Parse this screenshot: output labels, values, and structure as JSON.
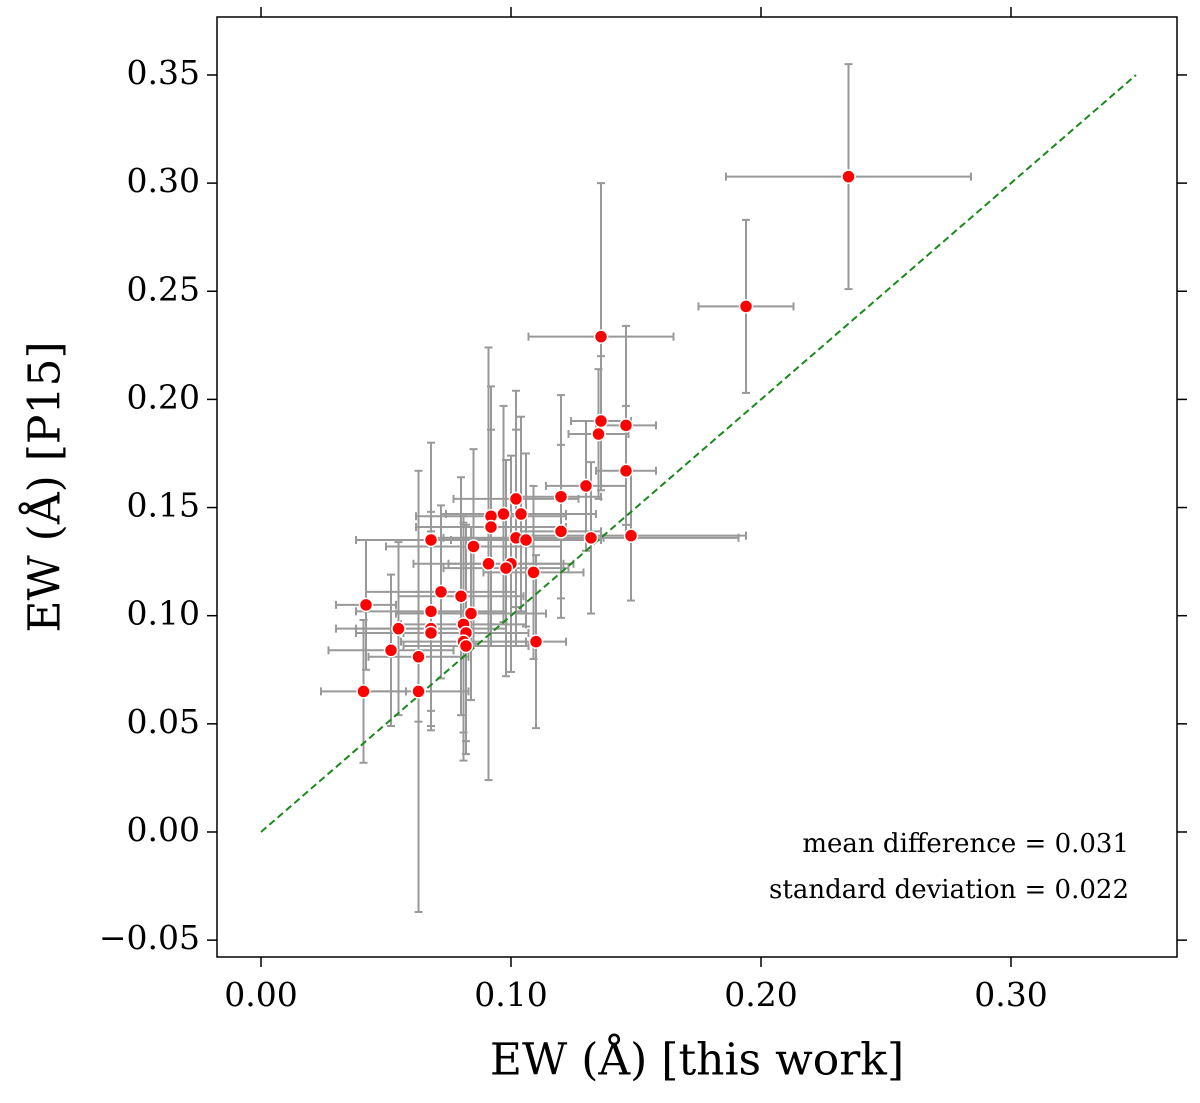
{
  "chart_data": {
    "type": "scatter",
    "xlabel": "EW (Å) [this work]",
    "ylabel": "EW (Å) [P15]",
    "xlim": [
      -0.0176,
      0.3664
    ],
    "ylim": [
      -0.0578,
      0.3768
    ],
    "xticks": [
      {
        "value": 0,
        "label": "0.00"
      },
      {
        "value": 0.1,
        "label": "0.10"
      },
      {
        "value": 0.2,
        "label": "0.20"
      },
      {
        "value": 0.3,
        "label": "0.30"
      }
    ],
    "yticks": [
      {
        "value": -0.05,
        "label": "−0.05"
      },
      {
        "value": 0,
        "label": "0.00"
      },
      {
        "value": 0.05,
        "label": "0.05"
      },
      {
        "value": 0.1,
        "label": "0.10"
      },
      {
        "value": 0.15,
        "label": "0.15"
      },
      {
        "value": 0.2,
        "label": "0.20"
      },
      {
        "value": 0.25,
        "label": "0.25"
      },
      {
        "value": 0.3,
        "label": "0.30"
      },
      {
        "value": 0.35,
        "label": "0.35"
      }
    ],
    "reference_line": {
      "x": [
        0,
        0.35
      ],
      "y": [
        0,
        0.35
      ],
      "color": "#1a8a1a"
    },
    "annotations": [
      "mean difference = 0.031",
      "standard deviation = 0.022"
    ],
    "series": [
      {
        "color": "#ff0000",
        "error_color": "#999999",
        "x": [
          0.235,
          0.194,
          0.136,
          0.136,
          0.135,
          0.146,
          0.146,
          0.148,
          0.13,
          0.12,
          0.12,
          0.132,
          0.102,
          0.104,
          0.097,
          0.092,
          0.092,
          0.102,
          0.106,
          0.085,
          0.068,
          0.091,
          0.1,
          0.098,
          0.109,
          0.072,
          0.08,
          0.042,
          0.068,
          0.084,
          0.055,
          0.068,
          0.068,
          0.081,
          0.082,
          0.081,
          0.082,
          0.11,
          0.052,
          0.063,
          0.041,
          0.063
        ],
        "values": [
          0.303,
          0.243,
          0.229,
          0.19,
          0.184,
          0.188,
          0.167,
          0.137,
          0.16,
          0.155,
          0.139,
          0.136,
          0.154,
          0.147,
          0.147,
          0.146,
          0.141,
          0.136,
          0.135,
          0.132,
          0.135,
          0.124,
          0.124,
          0.122,
          0.12,
          0.111,
          0.109,
          0.105,
          0.102,
          0.101,
          0.094,
          0.094,
          0.092,
          0.096,
          0.092,
          0.088,
          0.086,
          0.088,
          0.084,
          0.081,
          0.065,
          0.065
        ],
        "xerr": [
          0.049,
          0.019,
          0.029,
          0.012,
          0.012,
          0.012,
          0.012,
          0.046,
          0.016,
          0.016,
          0.016,
          0.059,
          0.025,
          0.03,
          0.025,
          0.03,
          0.03,
          0.035,
          0.03,
          0.035,
          0.03,
          0.03,
          0.025,
          0.025,
          0.02,
          0.03,
          0.025,
          0.012,
          0.03,
          0.03,
          0.025,
          0.03,
          0.03,
          0.025,
          0.025,
          0.025,
          0.025,
          0.012,
          0.025,
          0.02,
          0.017,
          0.02
        ],
        "yerr": [
          0.052,
          0.04,
          0.071,
          0.03,
          0.03,
          0.046,
          0.03,
          0.03,
          0.03,
          0.047,
          0.04,
          0.035,
          0.05,
          0.045,
          0.05,
          0.06,
          0.045,
          0.05,
          0.04,
          0.045,
          0.045,
          0.1,
          0.05,
          0.05,
          0.04,
          0.04,
          0.055,
          0.03,
          0.046,
          0.04,
          0.04,
          0.045,
          0.045,
          0.05,
          0.05,
          0.055,
          0.05,
          0.04,
          0.035,
          0.03,
          0.033,
          0.102
        ]
      }
    ]
  }
}
